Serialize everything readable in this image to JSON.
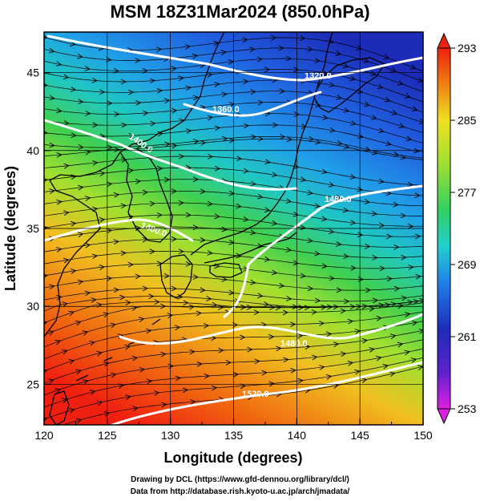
{
  "title": "MSM 18Z31Mar2024 (850.0hPa)",
  "chart_data": {
    "type": "map",
    "xlabel": "Longitude (degrees)",
    "ylabel": "Latitude  (degrees)",
    "xlim": [
      120,
      150
    ],
    "ylim": [
      22.4,
      47.6
    ],
    "x_ticks": [
      "120",
      "125",
      "130",
      "135",
      "140",
      "145",
      "150"
    ],
    "y_ticks": [
      "25",
      "30",
      "35",
      "40",
      "45"
    ],
    "colorbar": {
      "range": [
        253,
        293
      ],
      "ticks": [
        "293",
        "285",
        "277",
        "269",
        "261",
        "253"
      ]
    },
    "contour_labels": [
      "1320.0",
      "1360.0",
      "1400.0",
      "1400.0",
      "1480.0",
      "1480.0",
      "1520.0"
    ],
    "colors": {
      "cold": "#1f3fd0",
      "cool": "#22c8e6",
      "mild": "#40d040",
      "warm": "#f0e020",
      "hot": "#f04010",
      "contour": "#ffffff",
      "coastline": "#000000"
    }
  },
  "credits": {
    "line1": "Drawing by DCL (https://www.gfd-dennou.org/library/dcl/)",
    "line2": "Data from http://database.rish.kyoto-u.ac.jp/arch/jmadata/"
  }
}
